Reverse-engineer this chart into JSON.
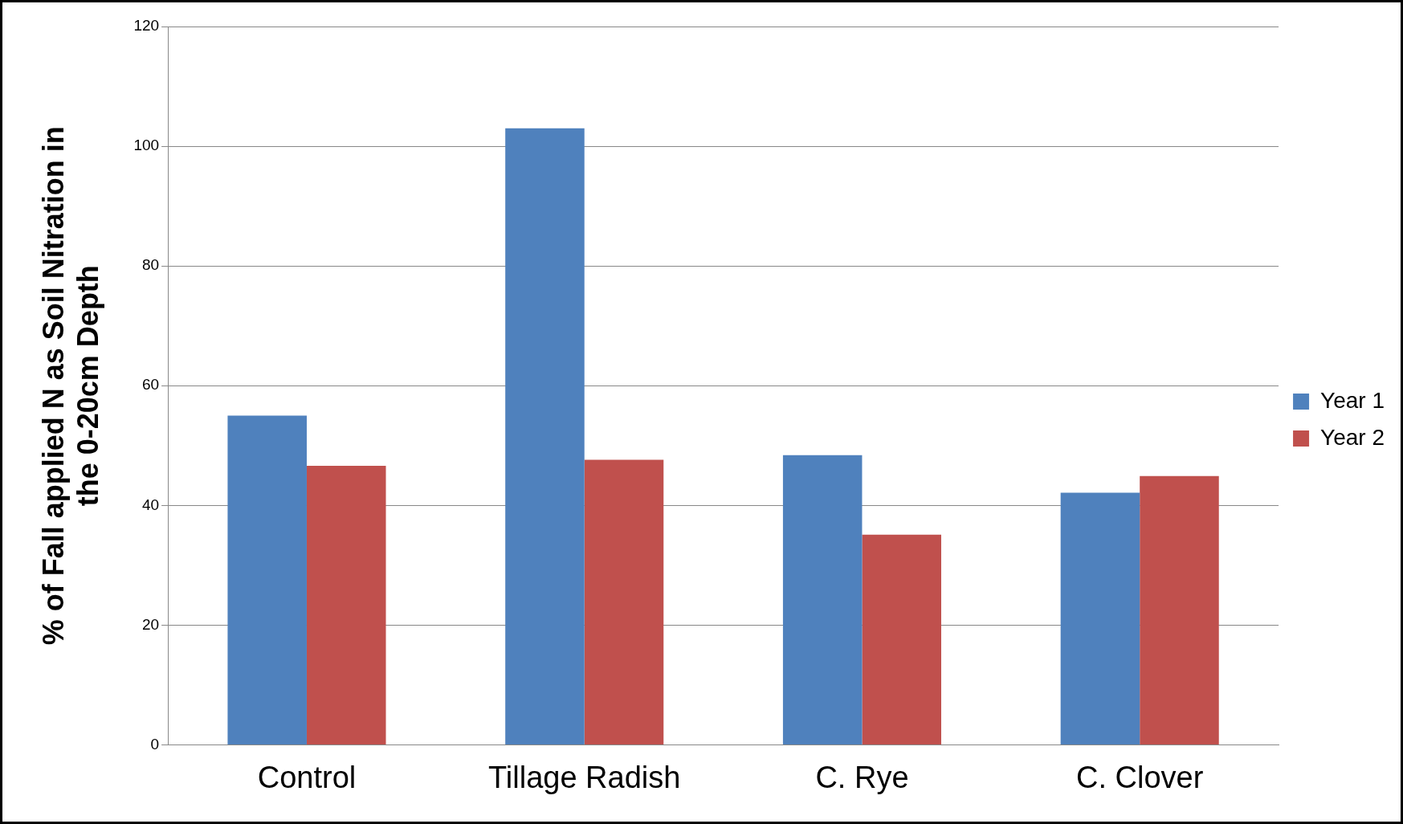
{
  "chart_data": {
    "type": "bar",
    "ylabel": "% of Fall applied N as Soil Nitration in the 0-20cm Depth",
    "categories": [
      "Control",
      "Tillage Radish",
      "C. Rye",
      "C. Clover"
    ],
    "series": [
      {
        "name": "Year 1",
        "color": "#4f81bd",
        "values": [
          55,
          103,
          48.4,
          42.1
        ]
      },
      {
        "name": "Year 2",
        "color": "#c0504d",
        "values": [
          46.6,
          47.6,
          35.1,
          44.9
        ]
      }
    ],
    "ylim": [
      0,
      120
    ],
    "yticks": [
      0,
      20,
      40,
      60,
      80,
      100,
      120
    ],
    "grid": "y",
    "legend": "right"
  }
}
